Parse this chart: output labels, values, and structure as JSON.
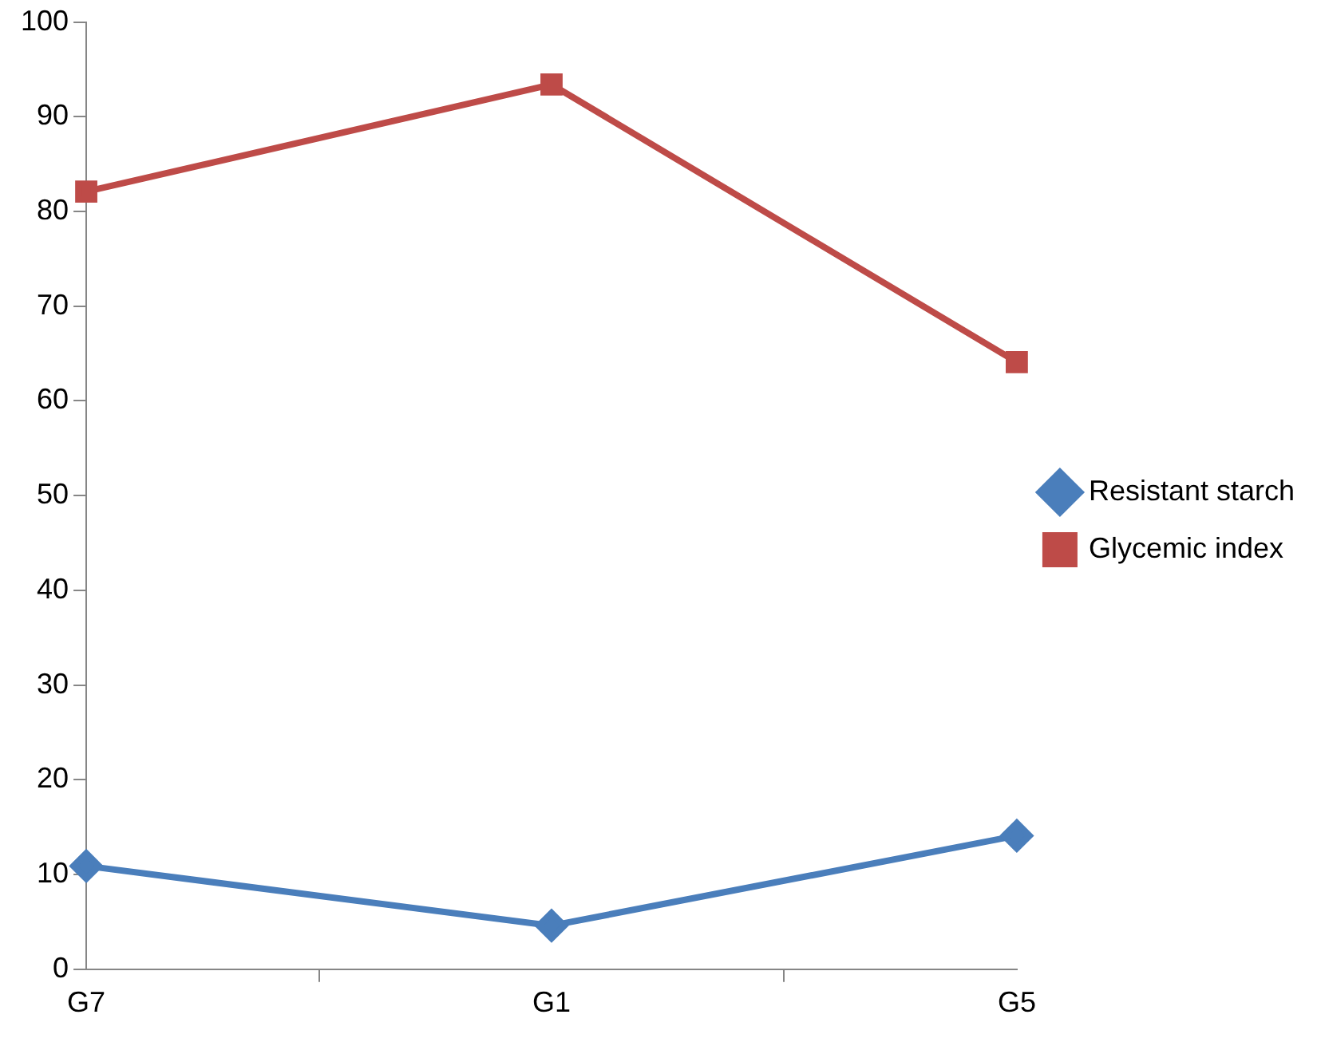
{
  "chart_data": {
    "type": "line",
    "categories": [
      "G7",
      "G1",
      "G5"
    ],
    "series": [
      {
        "name": "Resistant starch",
        "color": "#4a7ebb",
        "marker": "diamond",
        "values": [
          10.9,
          4.6,
          14.1
        ]
      },
      {
        "name": "Glycemic index",
        "color": "#be4b48",
        "marker": "square",
        "values": [
          82.1,
          93.4,
          64.1
        ]
      }
    ],
    "ylim": [
      0,
      100
    ],
    "yticks": [
      0,
      10,
      20,
      30,
      40,
      50,
      60,
      70,
      80,
      90,
      100
    ],
    "grid": false,
    "legend": "right",
    "line_style": "solid"
  }
}
